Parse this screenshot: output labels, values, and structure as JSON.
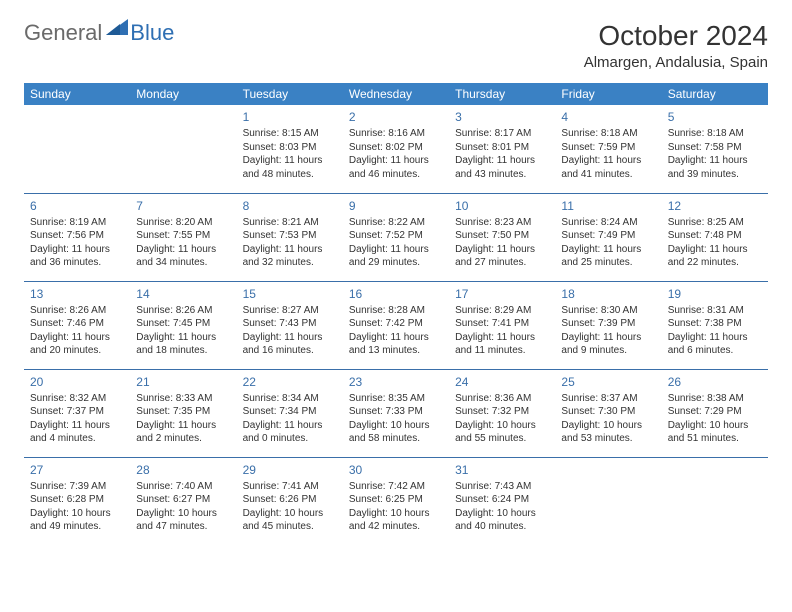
{
  "logo": {
    "general": "General",
    "blue": "Blue"
  },
  "title": "October 2024",
  "location": "Almargen, Andalusia, Spain",
  "colors": {
    "header_bg": "#3a81c4",
    "header_text": "#ffffff",
    "daynum": "#3a6fa9",
    "rule": "#3a6fa9",
    "body_text": "#333333",
    "logo_gray": "#6a6a6a",
    "logo_blue": "#2f6fb3"
  },
  "day_headers": [
    "Sunday",
    "Monday",
    "Tuesday",
    "Wednesday",
    "Thursday",
    "Friday",
    "Saturday"
  ],
  "weeks": [
    [
      null,
      null,
      {
        "n": "1",
        "sunrise": "Sunrise: 8:15 AM",
        "sunset": "Sunset: 8:03 PM",
        "day": "Daylight: 11 hours and 48 minutes."
      },
      {
        "n": "2",
        "sunrise": "Sunrise: 8:16 AM",
        "sunset": "Sunset: 8:02 PM",
        "day": "Daylight: 11 hours and 46 minutes."
      },
      {
        "n": "3",
        "sunrise": "Sunrise: 8:17 AM",
        "sunset": "Sunset: 8:01 PM",
        "day": "Daylight: 11 hours and 43 minutes."
      },
      {
        "n": "4",
        "sunrise": "Sunrise: 8:18 AM",
        "sunset": "Sunset: 7:59 PM",
        "day": "Daylight: 11 hours and 41 minutes."
      },
      {
        "n": "5",
        "sunrise": "Sunrise: 8:18 AM",
        "sunset": "Sunset: 7:58 PM",
        "day": "Daylight: 11 hours and 39 minutes."
      }
    ],
    [
      {
        "n": "6",
        "sunrise": "Sunrise: 8:19 AM",
        "sunset": "Sunset: 7:56 PM",
        "day": "Daylight: 11 hours and 36 minutes."
      },
      {
        "n": "7",
        "sunrise": "Sunrise: 8:20 AM",
        "sunset": "Sunset: 7:55 PM",
        "day": "Daylight: 11 hours and 34 minutes."
      },
      {
        "n": "8",
        "sunrise": "Sunrise: 8:21 AM",
        "sunset": "Sunset: 7:53 PM",
        "day": "Daylight: 11 hours and 32 minutes."
      },
      {
        "n": "9",
        "sunrise": "Sunrise: 8:22 AM",
        "sunset": "Sunset: 7:52 PM",
        "day": "Daylight: 11 hours and 29 minutes."
      },
      {
        "n": "10",
        "sunrise": "Sunrise: 8:23 AM",
        "sunset": "Sunset: 7:50 PM",
        "day": "Daylight: 11 hours and 27 minutes."
      },
      {
        "n": "11",
        "sunrise": "Sunrise: 8:24 AM",
        "sunset": "Sunset: 7:49 PM",
        "day": "Daylight: 11 hours and 25 minutes."
      },
      {
        "n": "12",
        "sunrise": "Sunrise: 8:25 AM",
        "sunset": "Sunset: 7:48 PM",
        "day": "Daylight: 11 hours and 22 minutes."
      }
    ],
    [
      {
        "n": "13",
        "sunrise": "Sunrise: 8:26 AM",
        "sunset": "Sunset: 7:46 PM",
        "day": "Daylight: 11 hours and 20 minutes."
      },
      {
        "n": "14",
        "sunrise": "Sunrise: 8:26 AM",
        "sunset": "Sunset: 7:45 PM",
        "day": "Daylight: 11 hours and 18 minutes."
      },
      {
        "n": "15",
        "sunrise": "Sunrise: 8:27 AM",
        "sunset": "Sunset: 7:43 PM",
        "day": "Daylight: 11 hours and 16 minutes."
      },
      {
        "n": "16",
        "sunrise": "Sunrise: 8:28 AM",
        "sunset": "Sunset: 7:42 PM",
        "day": "Daylight: 11 hours and 13 minutes."
      },
      {
        "n": "17",
        "sunrise": "Sunrise: 8:29 AM",
        "sunset": "Sunset: 7:41 PM",
        "day": "Daylight: 11 hours and 11 minutes."
      },
      {
        "n": "18",
        "sunrise": "Sunrise: 8:30 AM",
        "sunset": "Sunset: 7:39 PM",
        "day": "Daylight: 11 hours and 9 minutes."
      },
      {
        "n": "19",
        "sunrise": "Sunrise: 8:31 AM",
        "sunset": "Sunset: 7:38 PM",
        "day": "Daylight: 11 hours and 6 minutes."
      }
    ],
    [
      {
        "n": "20",
        "sunrise": "Sunrise: 8:32 AM",
        "sunset": "Sunset: 7:37 PM",
        "day": "Daylight: 11 hours and 4 minutes."
      },
      {
        "n": "21",
        "sunrise": "Sunrise: 8:33 AM",
        "sunset": "Sunset: 7:35 PM",
        "day": "Daylight: 11 hours and 2 minutes."
      },
      {
        "n": "22",
        "sunrise": "Sunrise: 8:34 AM",
        "sunset": "Sunset: 7:34 PM",
        "day": "Daylight: 11 hours and 0 minutes."
      },
      {
        "n": "23",
        "sunrise": "Sunrise: 8:35 AM",
        "sunset": "Sunset: 7:33 PM",
        "day": "Daylight: 10 hours and 58 minutes."
      },
      {
        "n": "24",
        "sunrise": "Sunrise: 8:36 AM",
        "sunset": "Sunset: 7:32 PM",
        "day": "Daylight: 10 hours and 55 minutes."
      },
      {
        "n": "25",
        "sunrise": "Sunrise: 8:37 AM",
        "sunset": "Sunset: 7:30 PM",
        "day": "Daylight: 10 hours and 53 minutes."
      },
      {
        "n": "26",
        "sunrise": "Sunrise: 8:38 AM",
        "sunset": "Sunset: 7:29 PM",
        "day": "Daylight: 10 hours and 51 minutes."
      }
    ],
    [
      {
        "n": "27",
        "sunrise": "Sunrise: 7:39 AM",
        "sunset": "Sunset: 6:28 PM",
        "day": "Daylight: 10 hours and 49 minutes."
      },
      {
        "n": "28",
        "sunrise": "Sunrise: 7:40 AM",
        "sunset": "Sunset: 6:27 PM",
        "day": "Daylight: 10 hours and 47 minutes."
      },
      {
        "n": "29",
        "sunrise": "Sunrise: 7:41 AM",
        "sunset": "Sunset: 6:26 PM",
        "day": "Daylight: 10 hours and 45 minutes."
      },
      {
        "n": "30",
        "sunrise": "Sunrise: 7:42 AM",
        "sunset": "Sunset: 6:25 PM",
        "day": "Daylight: 10 hours and 42 minutes."
      },
      {
        "n": "31",
        "sunrise": "Sunrise: 7:43 AM",
        "sunset": "Sunset: 6:24 PM",
        "day": "Daylight: 10 hours and 40 minutes."
      },
      null,
      null
    ]
  ]
}
